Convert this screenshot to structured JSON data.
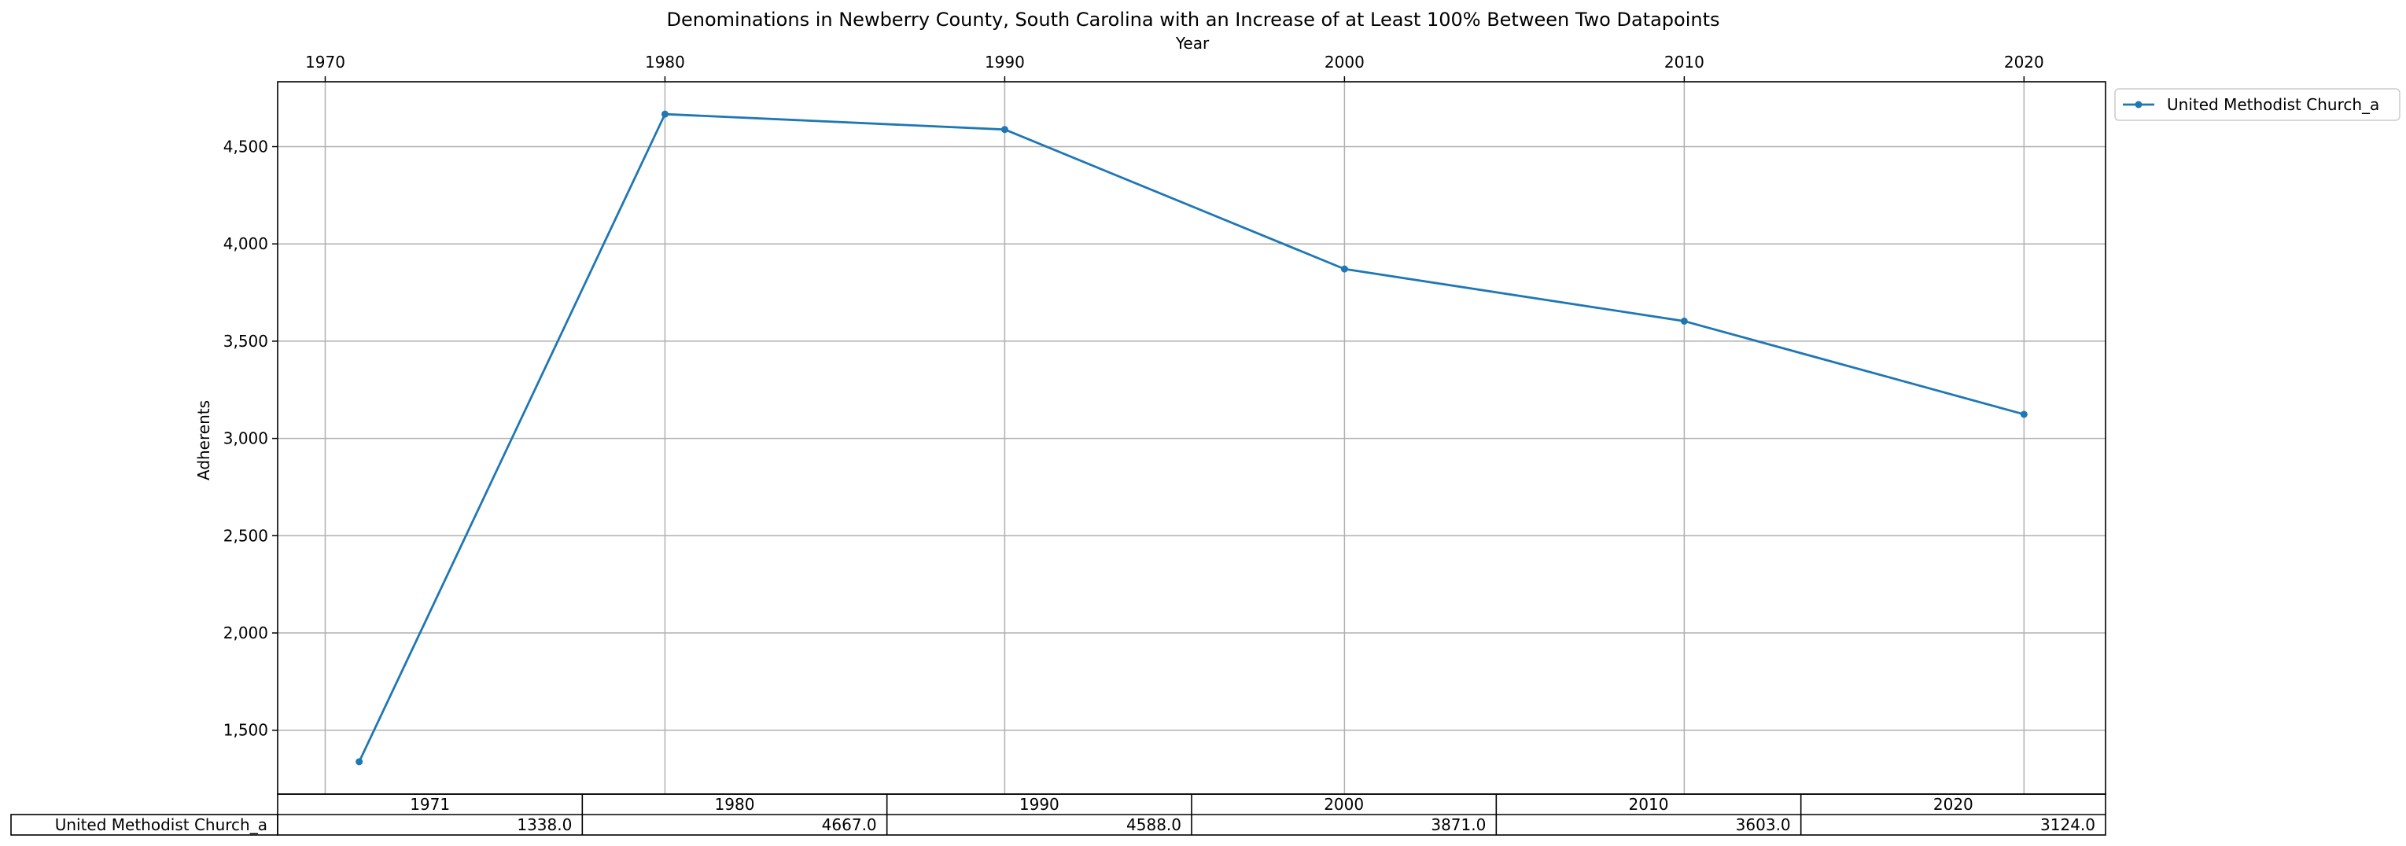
{
  "chart_data": {
    "type": "line",
    "title": "Denominations in Newberry County, South Carolina with an Increase of at Least 100% Between Two Datapoints",
    "xlabel": "Year",
    "ylabel": "Adherents",
    "x": [
      1971,
      1980,
      1990,
      2000,
      2010,
      2020
    ],
    "xticks": [
      "1970",
      "1980",
      "1990",
      "2000",
      "2010",
      "2020"
    ],
    "xtick_values": [
      1970,
      1980,
      1990,
      2000,
      2010,
      2020
    ],
    "yticks": [
      "1,500",
      "2,000",
      "2,500",
      "3,000",
      "3,500",
      "4,000",
      "4,500"
    ],
    "ytick_values": [
      1500,
      2000,
      2500,
      3000,
      3500,
      4000,
      4500
    ],
    "xlim": [
      1968.6,
      2022.4
    ],
    "ylim": [
      1171.55,
      4833.45
    ],
    "grid": true,
    "legend_position": "outside-top-right",
    "series": [
      {
        "name": "United Methodist Church_a",
        "values": [
          1338,
          4667,
          4588,
          3871,
          3603,
          3124
        ],
        "color": "#1f77b4"
      }
    ],
    "table": {
      "columns": [
        "1971",
        "1980",
        "1990",
        "2000",
        "2010",
        "2020"
      ],
      "rows": [
        {
          "label": "United Methodist Church_a",
          "cells": [
            "1338.0",
            "4667.0",
            "4588.0",
            "3871.0",
            "3603.0",
            "3124.0"
          ]
        }
      ]
    }
  }
}
